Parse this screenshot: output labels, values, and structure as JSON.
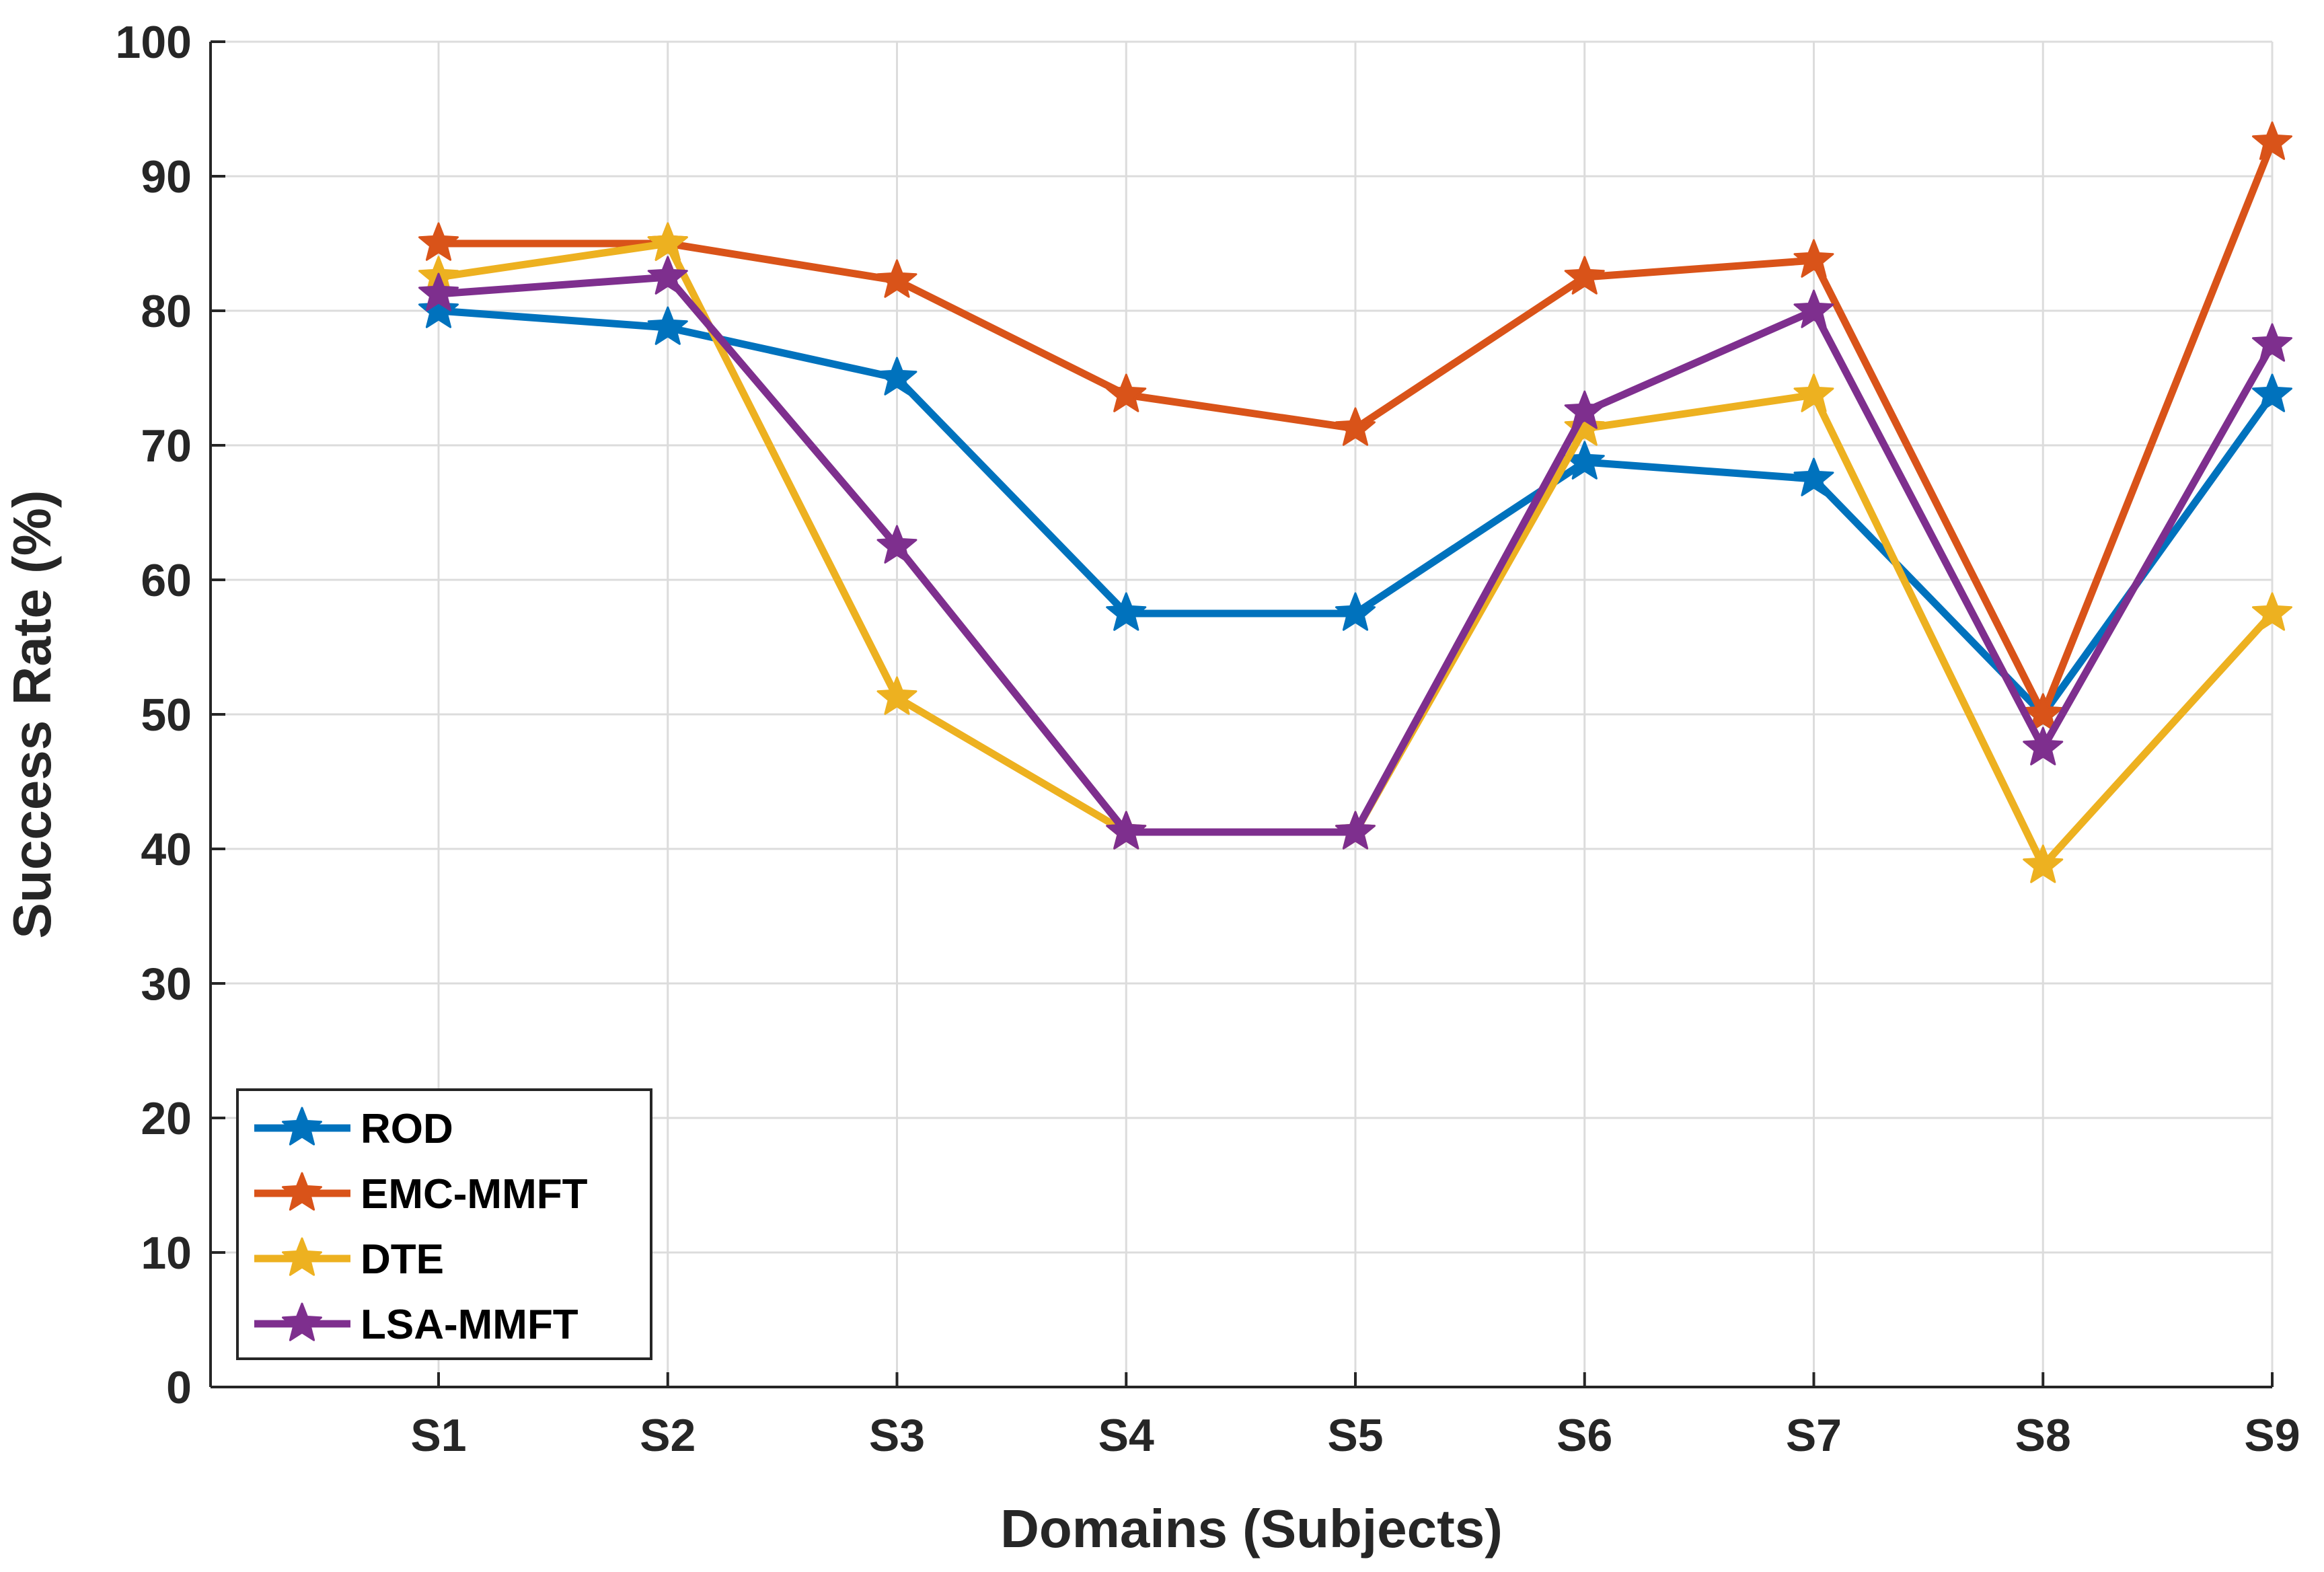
{
  "chart_data": {
    "type": "line",
    "title": "",
    "xlabel": "Domains (Subjects)",
    "ylabel": "Success Rate (%)",
    "categories": [
      "S1",
      "S2",
      "S3",
      "S4",
      "S5",
      "S6",
      "S7",
      "S8",
      "S9"
    ],
    "ylim": [
      0,
      100
    ],
    "yticks": [
      "0",
      "10",
      "20",
      "30",
      "40",
      "50",
      "60",
      "70",
      "80",
      "90",
      "100"
    ],
    "grid": true,
    "legend_position": "bottom-left",
    "series": [
      {
        "name": "ROD",
        "color": "#0072BD",
        "values": [
          80,
          78.75,
          75,
          57.5,
          57.5,
          68.75,
          67.5,
          50,
          73.75
        ]
      },
      {
        "name": "EMC-MMFT",
        "color": "#D95319",
        "values": [
          85,
          85,
          82.25,
          73.75,
          71.25,
          82.5,
          83.75,
          50,
          92.5
        ]
      },
      {
        "name": "DTE",
        "color": "#EDB120",
        "values": [
          82.5,
          85,
          51.25,
          41.25,
          41.25,
          71.25,
          73.75,
          38.75,
          57.5
        ]
      },
      {
        "name": "LSA-MMFT",
        "color": "#7E2F8E",
        "values": [
          81.25,
          82.5,
          62.5,
          41.25,
          41.25,
          72.5,
          80,
          47.5,
          77.5
        ]
      }
    ]
  }
}
